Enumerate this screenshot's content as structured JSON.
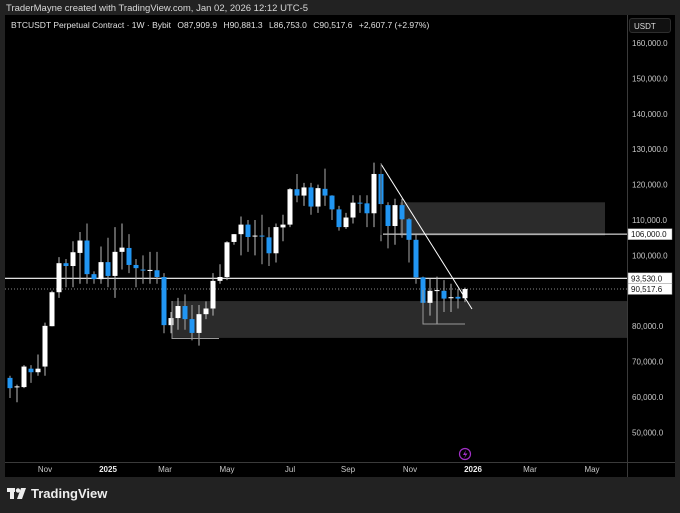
{
  "credit": "TraderMayne created with TradingView.com, Jan 02, 2026 12:12 UTC-5",
  "legend": {
    "symbol": "BTCUSDT Perpetual Contract · 1W · Bybit",
    "open": "O87,909.9",
    "high": "H90,881.3",
    "low": "L86,753.0",
    "close": "C90,517.6",
    "change": "+2,607.7 (+2.97%)"
  },
  "currency_button": "USDT",
  "price_axis": [
    "160,000.0",
    "150,000.0",
    "140,000.0",
    "130,000.0",
    "120,000.0",
    "110,000.0",
    "100,000.0",
    "80,000.0",
    "70,000.0",
    "60,000.0",
    "50,000.0"
  ],
  "price_labels": {
    "level_106k": "106,000.0",
    "level_93k": "93,530.0",
    "last_price": "90,517.6"
  },
  "time_axis": [
    {
      "label": "Nov",
      "bold": false
    },
    {
      "label": "2025",
      "bold": true
    },
    {
      "label": "Mar",
      "bold": false
    },
    {
      "label": "May",
      "bold": false
    },
    {
      "label": "Jul",
      "bold": false
    },
    {
      "label": "Sep",
      "bold": false
    },
    {
      "label": "Nov",
      "bold": false
    },
    {
      "label": "2026",
      "bold": true
    },
    {
      "label": "Mar",
      "bold": false
    },
    {
      "label": "May",
      "bold": false
    }
  ],
  "brand": "TradingView",
  "colors": {
    "up": "#ffffff",
    "down": "#2196f3",
    "zone": "#2b2b2b",
    "accent": "#9c27b0"
  },
  "chart_data": {
    "type": "candlestick",
    "interval": "1W",
    "unit": "thousand USDT",
    "ylim": [
      45,
      165
    ],
    "candles": [
      [
        65.4,
        66,
        59.7,
        62.5
      ],
      [
        62.8,
        63.5,
        58.5,
        63
      ],
      [
        62.8,
        69,
        62.5,
        68.6
      ],
      [
        68,
        69,
        64,
        67
      ],
      [
        67,
        72,
        66,
        68
      ],
      [
        68.6,
        81,
        66,
        80.1
      ],
      [
        80,
        90,
        80,
        89.6
      ],
      [
        89.6,
        99.5,
        88,
        97.8
      ],
      [
        97.8,
        99,
        91,
        97
      ],
      [
        97,
        104,
        91,
        100.9
      ],
      [
        100.7,
        106.6,
        92,
        104.2
      ],
      [
        104.2,
        109,
        92,
        94.7
      ],
      [
        94.7,
        95.5,
        92,
        93.3
      ],
      [
        93.3,
        102.5,
        92,
        98.1
      ],
      [
        98.1,
        105,
        91,
        94.2
      ],
      [
        94.2,
        108,
        88,
        101
      ],
      [
        101,
        109,
        96,
        102.2
      ],
      [
        102.1,
        106,
        95,
        97.3
      ],
      [
        97.3,
        99,
        91,
        96.4
      ],
      [
        96,
        100,
        92,
        95.8
      ],
      [
        95.6,
        101,
        92,
        95.9
      ],
      [
        95.8,
        101,
        92,
        93.9
      ],
      [
        93.9,
        95,
        78,
        80.3
      ],
      [
        80.3,
        84,
        78,
        82.3
      ],
      [
        82.3,
        88,
        79,
        85.7
      ],
      [
        85.7,
        89,
        79,
        82
      ],
      [
        82,
        86,
        76,
        78.1
      ],
      [
        78.1,
        86,
        74.5,
        83.4
      ],
      [
        83.4,
        87,
        82,
        85
      ],
      [
        85,
        95,
        83,
        92.8
      ],
      [
        92.8,
        97.5,
        92,
        93.9
      ],
      [
        93.9,
        104,
        93,
        103.7
      ],
      [
        103.8,
        106,
        103,
        106
      ],
      [
        106,
        111,
        100,
        108.7
      ],
      [
        108.7,
        110,
        101,
        105.2
      ],
      [
        105.4,
        110,
        100,
        105.6
      ],
      [
        105.6,
        111.5,
        97.5,
        105.4
      ],
      [
        105.1,
        108,
        97,
        100.6
      ],
      [
        100.6,
        109,
        98,
        108
      ],
      [
        107.9,
        111.5,
        104,
        108.7
      ],
      [
        108.7,
        119,
        108,
        118.7
      ],
      [
        118.7,
        123,
        115,
        116.9
      ],
      [
        116.9,
        120.5,
        114,
        119.2
      ],
      [
        119.2,
        120.5,
        111.5,
        113.8
      ],
      [
        113.8,
        120,
        112,
        119
      ],
      [
        118.8,
        124.5,
        114,
        116.9
      ],
      [
        116.9,
        117,
        110,
        113
      ],
      [
        113,
        114,
        107,
        108
      ],
      [
        108,
        112,
        107.5,
        110.7
      ],
      [
        110.7,
        117,
        109,
        114.9
      ],
      [
        114.9,
        117,
        112,
        114.7
      ],
      [
        114.7,
        117,
        108,
        111.9
      ],
      [
        111.9,
        126.2,
        108,
        123
      ],
      [
        123,
        126,
        104,
        114.5
      ],
      [
        114.2,
        115,
        102,
        108.3
      ],
      [
        108.3,
        116,
        103,
        114.2
      ],
      [
        114.2,
        116,
        105,
        110.2
      ],
      [
        110.2,
        110.5,
        98,
        104.4
      ],
      [
        104.4,
        106,
        92,
        93.8
      ],
      [
        93.8,
        94,
        81,
        86.6
      ],
      [
        86.6,
        93.5,
        83,
        90
      ],
      [
        90,
        94,
        80.5,
        90.2
      ],
      [
        90,
        93,
        84,
        87.8
      ],
      [
        87.9,
        92,
        84,
        88.2
      ],
      [
        88.3,
        90.5,
        85,
        87.8
      ],
      [
        87.9,
        90.9,
        86.8,
        90.5
      ]
    ],
    "zones": [
      {
        "top": 115,
        "bottom": 105.6
      },
      {
        "top": 87.1,
        "bottom": 76.7
      }
    ],
    "levels": [
      106,
      93.53,
      90.5176
    ],
    "trendline": {
      "from": {
        "price": 126,
        "week": 53
      },
      "to": {
        "price": 85,
        "week": 66
      }
    }
  }
}
